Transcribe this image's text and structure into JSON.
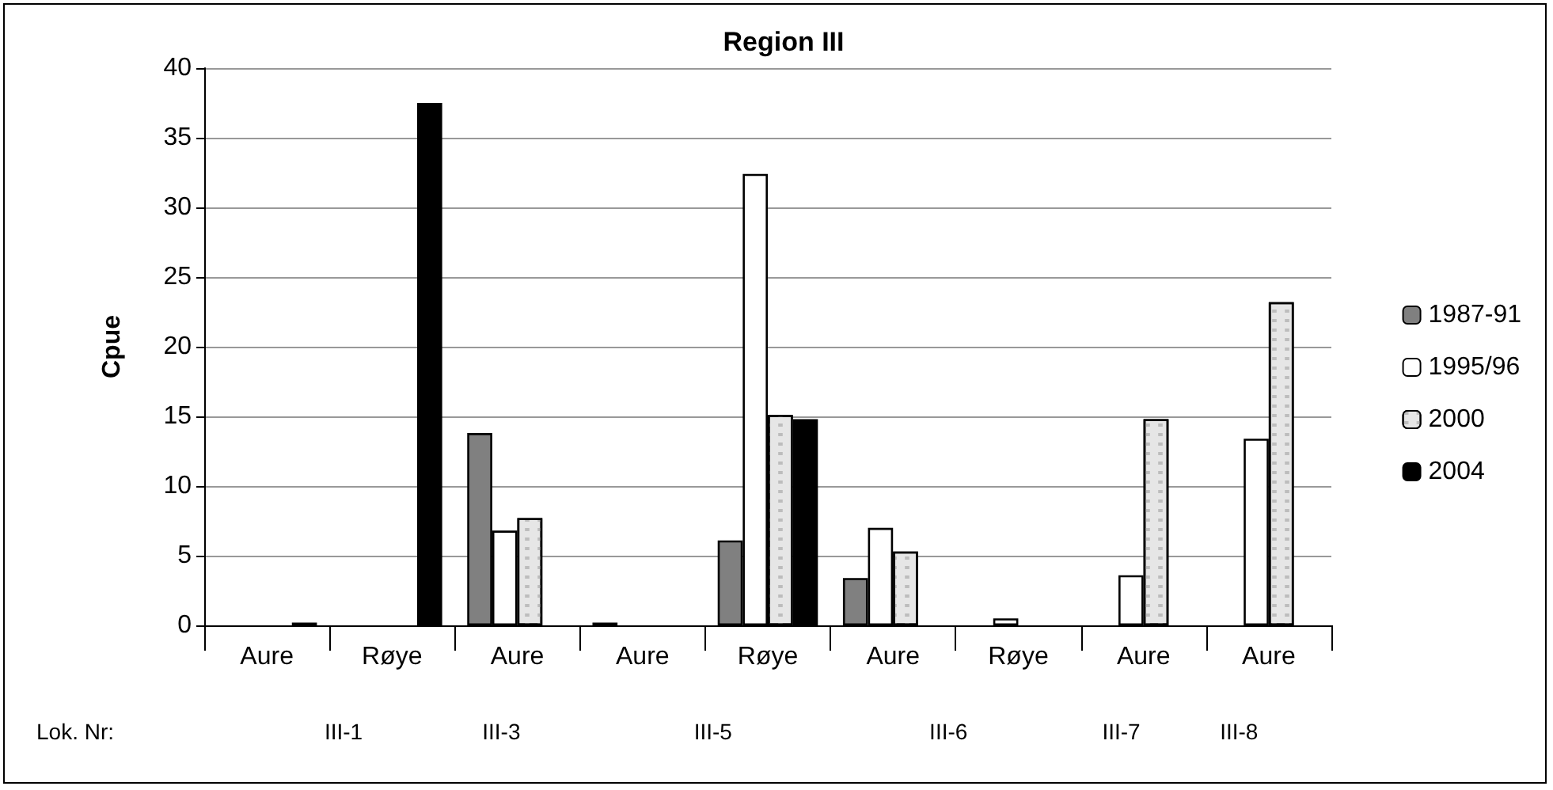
{
  "chart_data": {
    "type": "bar",
    "title": "Region III",
    "ylabel": "Cpue",
    "categories": [
      "Aure",
      "Røye",
      "Aure",
      "Aure",
      "Røye",
      "Aure",
      "Røye",
      "Aure",
      "Aure"
    ],
    "series": [
      {
        "name": "1987-91",
        "color": "#808080",
        "values": [
          null,
          null,
          13.8,
          0.2,
          6.1,
          3.4,
          null,
          null,
          null
        ]
      },
      {
        "name": "1995/96",
        "color": "#ffffff",
        "values": [
          null,
          null,
          6.8,
          null,
          32.4,
          7.0,
          0.5,
          3.6,
          13.4
        ]
      },
      {
        "name": "2000",
        "color": "#e6e6e6",
        "values": [
          null,
          null,
          7.7,
          null,
          15.1,
          5.3,
          null,
          14.8,
          23.2
        ]
      },
      {
        "name": "2004",
        "color": "#000000",
        "values": [
          0.2,
          37.5,
          null,
          null,
          14.8,
          null,
          null,
          null,
          null
        ]
      }
    ],
    "ylim": [
      0,
      40
    ],
    "yticks": [
      0,
      5,
      10,
      15,
      20,
      25,
      30,
      35,
      40
    ],
    "grid": "y",
    "legend": "right",
    "annotations": [
      "Lok. Nr:",
      "III-1",
      "III-3",
      "III-5",
      "III-6",
      "III-7",
      "III-8"
    ]
  }
}
